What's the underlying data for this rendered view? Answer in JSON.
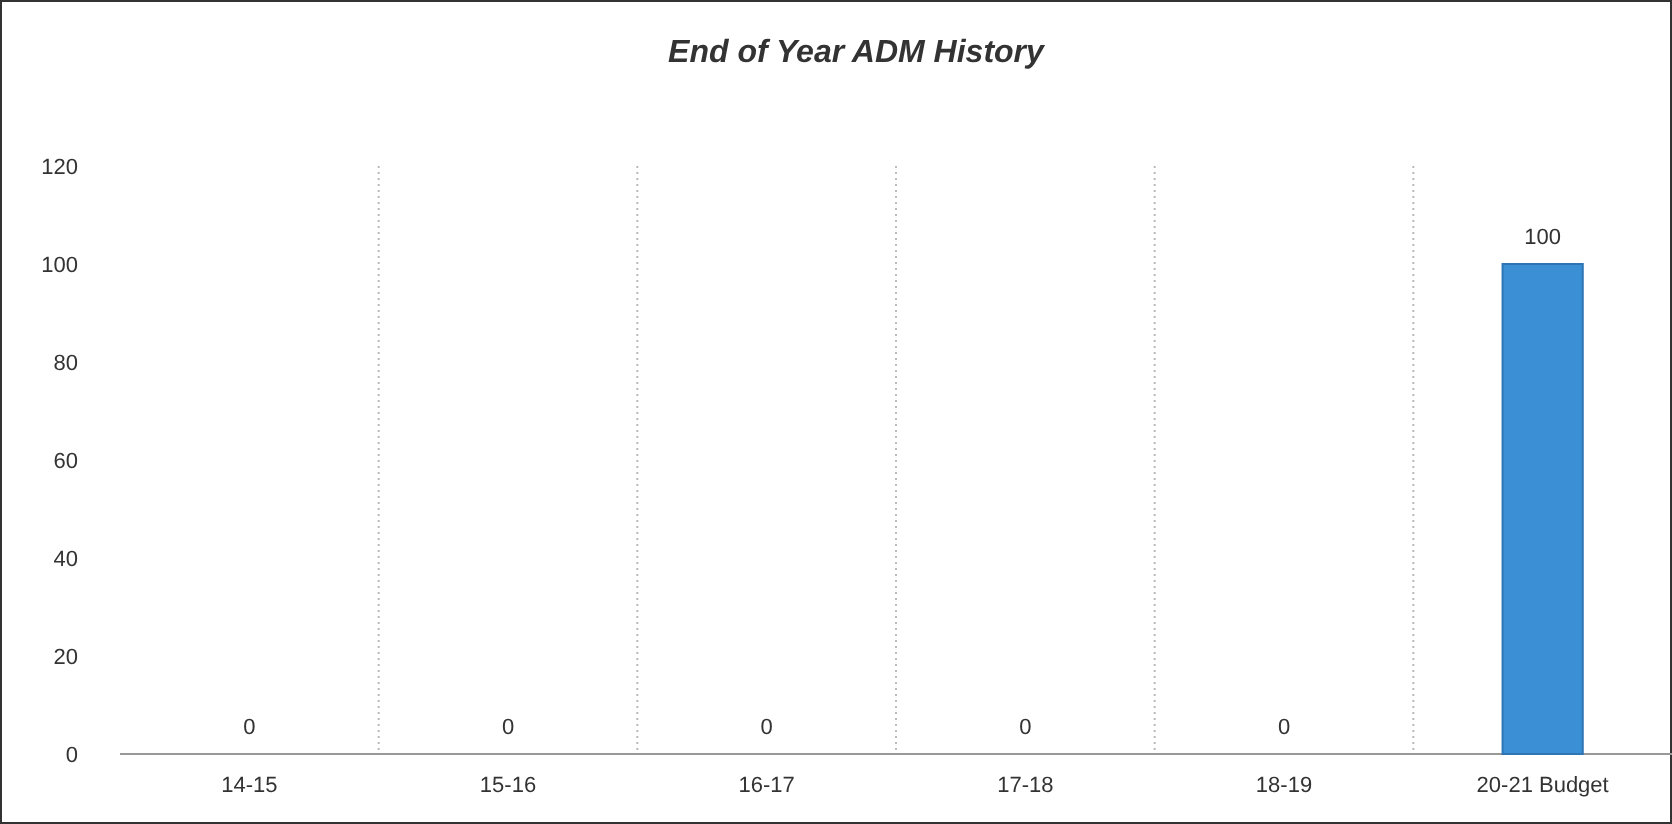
{
  "chart_data": {
    "type": "bar",
    "title": "End of Year ADM History",
    "categories": [
      "14-15",
      "15-16",
      "16-17",
      "17-18",
      "18-19",
      "20-21 Budget"
    ],
    "values": [
      0,
      0,
      0,
      0,
      0,
      100
    ],
    "color": "#3b8fd4",
    "ylim": [
      0,
      120
    ],
    "yticks": [
      0,
      20,
      40,
      60,
      80,
      100,
      120
    ],
    "grid": "x",
    "data_labels": true
  }
}
